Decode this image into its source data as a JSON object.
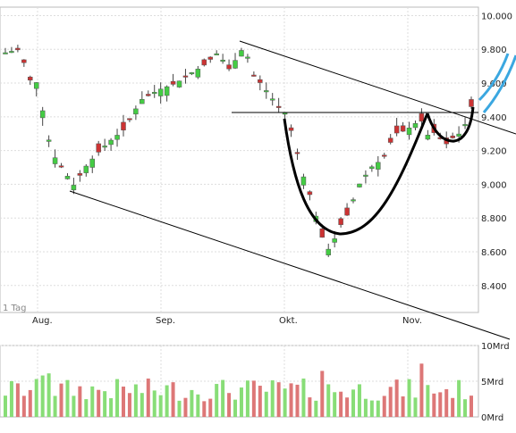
{
  "chart_data": {
    "type": "candlestick",
    "interval_label": "1 Tag",
    "x_tick_labels": [
      "Aug.",
      "Sep.",
      "Okt.",
      "Nov."
    ],
    "y_tick_labels": [
      "10.000",
      "9.800",
      "9.600",
      "9.400",
      "9.200",
      "9.000",
      "8.800",
      "8.600",
      "8.400"
    ],
    "y_tick_values": [
      10000,
      9800,
      9600,
      9400,
      9200,
      9000,
      8800,
      8600,
      8400
    ],
    "ylim": [
      8240,
      10050
    ],
    "grid": true,
    "volume": {
      "tick_labels": [
        "10Mrd",
        "5Mrd",
        "0Mrd"
      ],
      "tick_values": [
        10,
        5,
        0
      ],
      "unit": "Mrd",
      "ylim": [
        0,
        10
      ]
    },
    "colors": {
      "up": "#44cc44",
      "down": "#cc3333",
      "trendline": "#000000",
      "annotation": "#3ba7e0"
    }
  }
}
